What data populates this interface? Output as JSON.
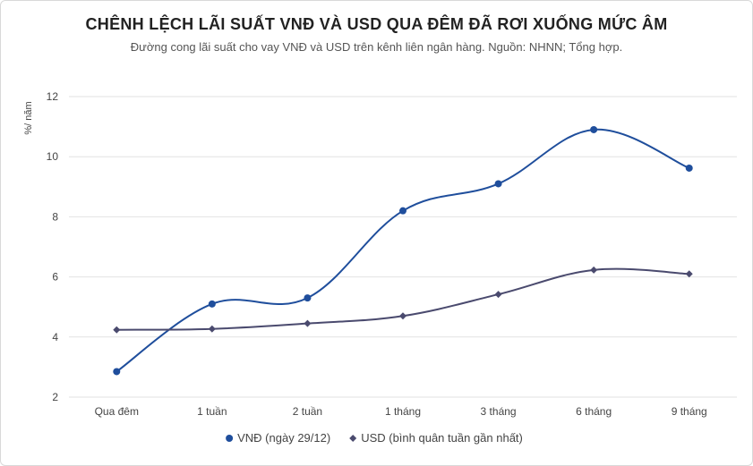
{
  "chart_data": {
    "type": "line",
    "title": "CHÊNH LỆCH LÃI SUẤT VNĐ VÀ USD QUA ĐÊM ĐÃ RƠI XUỐNG MỨC ÂM",
    "subtitle": "Đường cong lãi suất cho vay VNĐ và USD trên kênh liên ngân hàng. Nguồn: NHNN; Tổng hợp.",
    "ylabel": "%/ năm",
    "xlabel": "",
    "categories": [
      "Qua đêm",
      "1 tuần",
      "2 tuần",
      "1 tháng",
      "3 tháng",
      "6 tháng",
      "9 tháng"
    ],
    "ylim": [
      2,
      12
    ],
    "yticks": [
      2,
      4,
      6,
      8,
      10,
      12
    ],
    "grid": true,
    "legend_position": "bottom",
    "series": [
      {
        "name": "VNĐ (ngày 29/12)",
        "values": [
          2.85,
          5.1,
          5.3,
          8.2,
          9.1,
          10.9,
          9.62
        ],
        "color": "#1f4e9c",
        "marker": "circle"
      },
      {
        "name": "USD (bình quân tuần gần nhất)",
        "values": [
          4.24,
          4.27,
          4.45,
          4.7,
          5.42,
          6.23,
          6.1
        ],
        "color": "#4a4a6e",
        "marker": "diamond"
      }
    ]
  }
}
